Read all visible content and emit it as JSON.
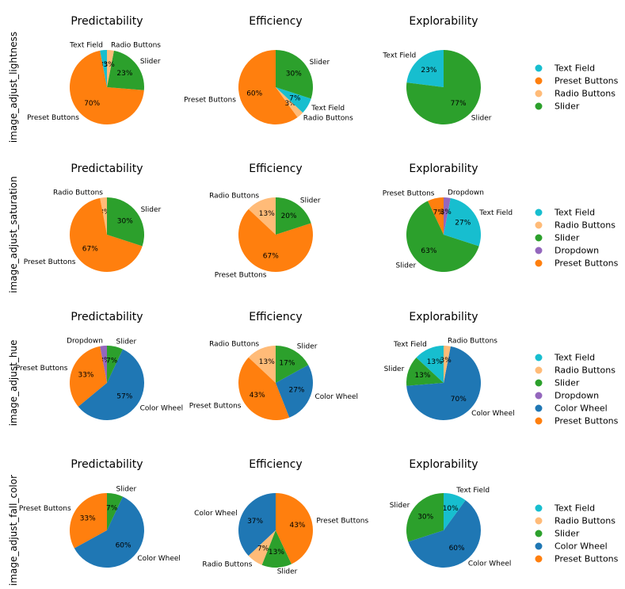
{
  "colors": {
    "Text Field": "#17becf",
    "Preset Buttons": "#ff7f0e",
    "Radio Buttons": "#ffbb78",
    "Slider": "#2ca02c",
    "Dropdown": "#9467bd",
    "Color Wheel": "#1f77b4"
  },
  "chart_data": [
    {
      "type": "pie",
      "row_label": "image_adjust_lightness",
      "legend": [
        "Text Field",
        "Preset Buttons",
        "Radio Buttons",
        "Slider"
      ],
      "pies": [
        {
          "title": "Predictability",
          "slices": [
            {
              "label": "Text Field",
              "value": 3,
              "pct": "3%"
            },
            {
              "label": "Preset Buttons",
              "value": 70,
              "pct": "70%"
            },
            {
              "label": "Slider",
              "value": 23,
              "pct": "23%"
            },
            {
              "label": "Radio Buttons",
              "value": 3,
              "pct": "3%"
            }
          ]
        },
        {
          "title": "Efficiency",
          "slices": [
            {
              "label": "Preset Buttons",
              "value": 60,
              "pct": "60%"
            },
            {
              "label": "Radio Buttons",
              "value": 3,
              "pct": "3%"
            },
            {
              "label": "Text Field",
              "value": 7,
              "pct": "7%"
            },
            {
              "label": "Slider",
              "value": 30,
              "pct": "30%"
            }
          ]
        },
        {
          "title": "Explorability",
          "slices": [
            {
              "label": "Text Field",
              "value": 23,
              "pct": "23%"
            },
            {
              "label": "Slider",
              "value": 77,
              "pct": "77%"
            }
          ]
        }
      ]
    },
    {
      "type": "pie",
      "row_label": "image_adjust_saturation",
      "legend": [
        "Text Field",
        "Radio Buttons",
        "Slider",
        "Dropdown",
        "Preset Buttons"
      ],
      "pies": [
        {
          "title": "Predictability",
          "slices": [
            {
              "label": "Radio Buttons",
              "value": 3,
              "pct": "3%"
            },
            {
              "label": "Preset Buttons",
              "value": 67,
              "pct": "67%"
            },
            {
              "label": "Slider",
              "value": 30,
              "pct": "30%"
            }
          ]
        },
        {
          "title": "Efficiency",
          "slices": [
            {
              "label": "Radio Buttons",
              "value": 13,
              "pct": "13%"
            },
            {
              "label": "Preset Buttons",
              "value": 67,
              "pct": "67%"
            },
            {
              "label": "Slider",
              "value": 20,
              "pct": "20%"
            }
          ]
        },
        {
          "title": "Explorability",
          "slices": [
            {
              "label": "Preset Buttons",
              "value": 7,
              "pct": "7%"
            },
            {
              "label": "Slider",
              "value": 63,
              "pct": "63%"
            },
            {
              "label": "Text Field",
              "value": 27,
              "pct": "27%"
            },
            {
              "label": "Dropdown",
              "value": 3,
              "pct": "3%"
            }
          ]
        }
      ]
    },
    {
      "type": "pie",
      "row_label": "image_adjust_hue",
      "legend": [
        "Text Field",
        "Radio Buttons",
        "Slider",
        "Dropdown",
        "Color Wheel",
        "Preset Buttons"
      ],
      "pies": [
        {
          "title": "Predictability",
          "slices": [
            {
              "label": "Dropdown",
              "value": 3,
              "pct": "3%"
            },
            {
              "label": "Preset Buttons",
              "value": 33,
              "pct": "33%"
            },
            {
              "label": "Color Wheel",
              "value": 57,
              "pct": "57%"
            },
            {
              "label": "Slider",
              "value": 7,
              "pct": "7%"
            }
          ]
        },
        {
          "title": "Efficiency",
          "slices": [
            {
              "label": "Radio Buttons",
              "value": 13,
              "pct": "13%"
            },
            {
              "label": "Preset Buttons",
              "value": 43,
              "pct": "43%"
            },
            {
              "label": "Color Wheel",
              "value": 27,
              "pct": "27%"
            },
            {
              "label": "Slider",
              "value": 17,
              "pct": "17%"
            }
          ]
        },
        {
          "title": "Explorability",
          "slices": [
            {
              "label": "Text Field",
              "value": 13,
              "pct": "13%"
            },
            {
              "label": "Slider",
              "value": 13,
              "pct": "13%"
            },
            {
              "label": "Color Wheel",
              "value": 70,
              "pct": "70%"
            },
            {
              "label": "Radio Buttons",
              "value": 3,
              "pct": "3%"
            }
          ]
        }
      ]
    },
    {
      "type": "pie",
      "row_label": "image_adjust_fall_color",
      "legend": [
        "Text Field",
        "Radio Buttons",
        "Slider",
        "Color Wheel",
        "Preset Buttons"
      ],
      "pies": [
        {
          "title": "Predictability",
          "slices": [
            {
              "label": "Preset Buttons",
              "value": 33,
              "pct": "33%"
            },
            {
              "label": "Color Wheel",
              "value": 60,
              "pct": "60%"
            },
            {
              "label": "Slider",
              "value": 7,
              "pct": "7%"
            }
          ]
        },
        {
          "title": "Efficiency",
          "slices": [
            {
              "label": "Color Wheel",
              "value": 37,
              "pct": "37%"
            },
            {
              "label": "Radio Buttons",
              "value": 7,
              "pct": "7%"
            },
            {
              "label": "Slider",
              "value": 13,
              "pct": "13%"
            },
            {
              "label": "Preset Buttons",
              "value": 43,
              "pct": "43%"
            }
          ]
        },
        {
          "title": "Explorability",
          "slices": [
            {
              "label": "Slider",
              "value": 30,
              "pct": "30%"
            },
            {
              "label": "Color Wheel",
              "value": 60,
              "pct": "60%"
            },
            {
              "label": "Text Field",
              "value": 10,
              "pct": "10%"
            }
          ]
        }
      ]
    }
  ]
}
